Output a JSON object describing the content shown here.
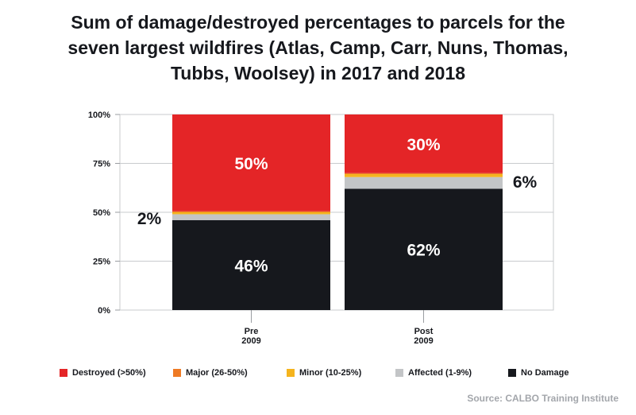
{
  "title_lines": [
    "Sum of damage/destroyed percentages to parcels for the",
    "seven largest wildfires (Atlas, Camp, Carr, Nuns, Thomas,",
    "Tubbs, Woolsey) in 2017 and 2018"
  ],
  "source": "Source: CALBO Training Institute",
  "chart_data": {
    "type": "bar",
    "stacked": true,
    "title": "Sum of damage/destroyed percentages to parcels for the seven largest wildfires (Atlas, Camp, Carr, Nuns, Thomas, Tubbs, Woolsey) in 2017 and 2018",
    "categories": [
      [
        "Pre",
        "2009"
      ],
      [
        "Post",
        "2009"
      ]
    ],
    "ylim": [
      0,
      100
    ],
    "yticks": [
      "0%",
      "25%",
      "50%",
      "75%",
      "100%"
    ],
    "grid": true,
    "legend_position": "bottom",
    "series": [
      {
        "name": "No Damage",
        "color": "#16181d",
        "values": [
          46,
          62
        ]
      },
      {
        "name": "Affected (1-9%)",
        "color": "#c3c5c7",
        "values": [
          3,
          6
        ]
      },
      {
        "name": "Minor (10-25%)",
        "color": "#f5b41e",
        "values": [
          1,
          1.5
        ]
      },
      {
        "name": "Major (26-50%)",
        "color": "#ee7a24",
        "values": [
          0.5,
          0.5
        ]
      },
      {
        "name": "Destroyed (>50%)",
        "color": "#e42527",
        "values": [
          49.5,
          30
        ]
      }
    ],
    "data_labels": [
      {
        "category": 0,
        "series": "No Damage",
        "text": "46%"
      },
      {
        "category": 0,
        "series": "Destroyed (>50%)",
        "text": "50%"
      },
      {
        "category": 1,
        "series": "No Damage",
        "text": "62%"
      },
      {
        "category": 1,
        "series": "Destroyed (>50%)",
        "text": "30%"
      }
    ],
    "annotations": [
      {
        "category": 0,
        "side": "left",
        "text": "2%"
      },
      {
        "category": 1,
        "side": "right",
        "text": "6%"
      }
    ],
    "legend_order": [
      "Destroyed (>50%)",
      "Major (26-50%)",
      "Minor (10-25%)",
      "Affected (1-9%)",
      "No Damage"
    ]
  }
}
